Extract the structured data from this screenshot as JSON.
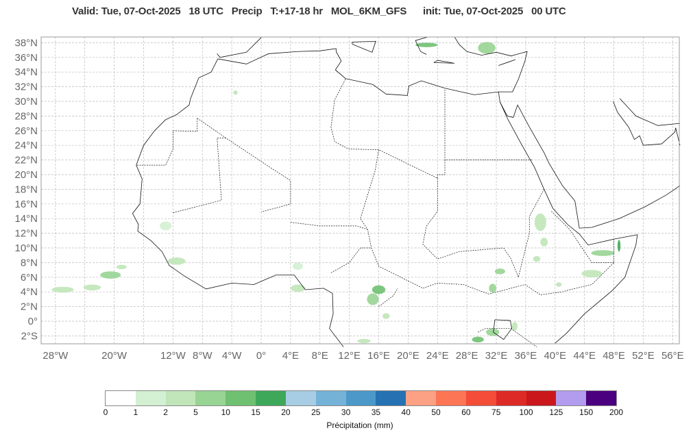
{
  "title": "Valid: Tue, 07-Oct-2025   18 UTC   Precip   T:+17-18 hr   MOL_6KM_GFS      init: Tue, 07-Oct-2025   00 UTC",
  "map": {
    "lon_labels": [
      {
        "lon": -28,
        "t": "28°W"
      },
      {
        "lon": -20,
        "t": "20°W"
      },
      {
        "lon": -12,
        "t": "12°W"
      },
      {
        "lon": -8,
        "t": "8°W"
      },
      {
        "lon": -4,
        "t": "4°W"
      },
      {
        "lon": 0,
        "t": "0°"
      },
      {
        "lon": 4,
        "t": "4°E"
      },
      {
        "lon": 8,
        "t": "8°E"
      },
      {
        "lon": 12,
        "t": "12°E"
      },
      {
        "lon": 16,
        "t": "16°E"
      },
      {
        "lon": 20,
        "t": "20°E"
      },
      {
        "lon": 24,
        "t": "24°E"
      },
      {
        "lon": 28,
        "t": "28°E"
      },
      {
        "lon": 32,
        "t": "32°E"
      },
      {
        "lon": 36,
        "t": "36°E"
      },
      {
        "lon": 40,
        "t": "40°E"
      },
      {
        "lon": 44,
        "t": "44°E"
      },
      {
        "lon": 48,
        "t": "48°E"
      },
      {
        "lon": 52,
        "t": "52°E"
      },
      {
        "lon": 56,
        "t": "56°E"
      }
    ],
    "lat_labels": [
      {
        "lat": 38,
        "t": "38°N"
      },
      {
        "lat": 36,
        "t": "36°N"
      },
      {
        "lat": 34,
        "t": "34°N"
      },
      {
        "lat": 32,
        "t": "32°N"
      },
      {
        "lat": 30,
        "t": "30°N"
      },
      {
        "lat": 28,
        "t": "28°N"
      },
      {
        "lat": 26,
        "t": "26°N"
      },
      {
        "lat": 24,
        "t": "24°N"
      },
      {
        "lat": 22,
        "t": "22°N"
      },
      {
        "lat": 20,
        "t": "20°N"
      },
      {
        "lat": 18,
        "t": "18°N"
      },
      {
        "lat": 16,
        "t": "16°N"
      },
      {
        "lat": 14,
        "t": "14°N"
      },
      {
        "lat": 12,
        "t": "12°N"
      },
      {
        "lat": 10,
        "t": "10°N"
      },
      {
        "lat": 8,
        "t": "8°N"
      },
      {
        "lat": 6,
        "t": "6°N"
      },
      {
        "lat": 4,
        "t": "4°N"
      },
      {
        "lat": 2,
        "t": "2°N"
      },
      {
        "lat": 0,
        "t": "0°"
      },
      {
        "lat": -2,
        "t": "2°S"
      }
    ]
  },
  "colorbar": {
    "label": "Précipitation (mm)",
    "ticks": [
      "0",
      "1",
      "2",
      "5",
      "10",
      "15",
      "20",
      "25",
      "30",
      "35",
      "40",
      "50",
      "60",
      "75",
      "100",
      "125",
      "150",
      "200"
    ],
    "colors": [
      "#ffffff",
      "#d3f0d2",
      "#c0e5b8",
      "#98d493",
      "#6fc071",
      "#3ea85a",
      "#a6cde3",
      "#75b2d7",
      "#4c98c8",
      "#2671b2",
      "#fca184",
      "#fc7656",
      "#f34c38",
      "#dd2a26",
      "#c9171c",
      "#b29ced",
      "#4b017f"
    ]
  }
}
